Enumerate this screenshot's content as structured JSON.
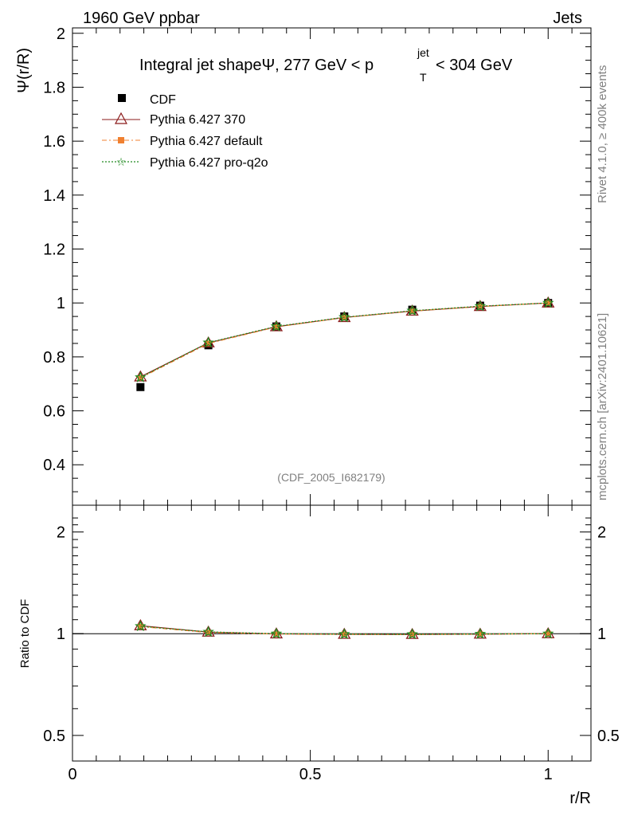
{
  "header": {
    "left": "1960 GeV ppbar",
    "right": "Jets"
  },
  "side": {
    "rivet": "Rivet 4.1.0, ≥ 400k events",
    "mcplots": "mcplots.cern.ch [arXiv:2401.10621]"
  },
  "chart_data": {
    "type": "line",
    "title": "Integral jet shapeΨ, 277 GeV < p_T^jet < 304 GeV",
    "title_parts": {
      "main": "Integral jet shapeΨ, 277 GeV < p",
      "sup": "jet",
      "sub": "T",
      "tail": "< 304 GeV"
    },
    "analysis_label": "(CDF_2005_I682179)",
    "ylabel": "Ψ(r/R)",
    "xlabel": "r/R",
    "xlim": [
      0,
      1.09
    ],
    "ylim": [
      0.25,
      2.02
    ],
    "x_ticks": [
      "0",
      "0.5",
      "1"
    ],
    "y_ticks": [
      "0.4",
      "0.6",
      "0.8",
      "1",
      "1.2",
      "1.4",
      "1.6",
      "1.8",
      "2"
    ],
    "legend_position": "top-left",
    "x": [
      0.1429,
      0.2857,
      0.4286,
      0.5714,
      0.7143,
      0.8571,
      1.0
    ],
    "series": [
      {
        "name": "CDF",
        "values": [
          0.688,
          0.843,
          0.913,
          0.95,
          0.975,
          0.99,
          1.0
        ],
        "color": "#000000",
        "marker": "square"
      },
      {
        "name": "Pythia 6.427 370",
        "values": [
          0.726,
          0.852,
          0.912,
          0.946,
          0.97,
          0.987,
          1.0
        ],
        "color": "#8b1a1a",
        "marker": "triangle"
      },
      {
        "name": "Pythia 6.427 default",
        "values": [
          0.722,
          0.85,
          0.911,
          0.946,
          0.97,
          0.987,
          1.0
        ],
        "color": "#f08030",
        "marker": "filled-square"
      },
      {
        "name": "Pythia 6.427 pro-q2o",
        "values": [
          0.724,
          0.853,
          0.913,
          0.947,
          0.971,
          0.988,
          1.0
        ],
        "color": "#228b22",
        "marker": "star"
      }
    ],
    "ratio_panel": {
      "ylabel": "Ratio to CDF",
      "ylim": [
        0.42,
        2.4
      ],
      "log_scale": true,
      "y_ticks": [
        "0.5",
        "1",
        "2"
      ],
      "series": [
        {
          "name": "Pythia 6.427 370",
          "values": [
            1.056,
            1.011,
            0.999,
            0.996,
            0.995,
            0.997,
            1.0
          ]
        },
        {
          "name": "Pythia 6.427 default",
          "values": [
            1.05,
            1.008,
            0.998,
            0.996,
            0.995,
            0.997,
            1.0
          ]
        },
        {
          "name": "Pythia 6.427 pro-q2o",
          "values": [
            1.052,
            1.012,
            1.0,
            0.997,
            0.996,
            0.998,
            1.0
          ]
        }
      ]
    }
  }
}
